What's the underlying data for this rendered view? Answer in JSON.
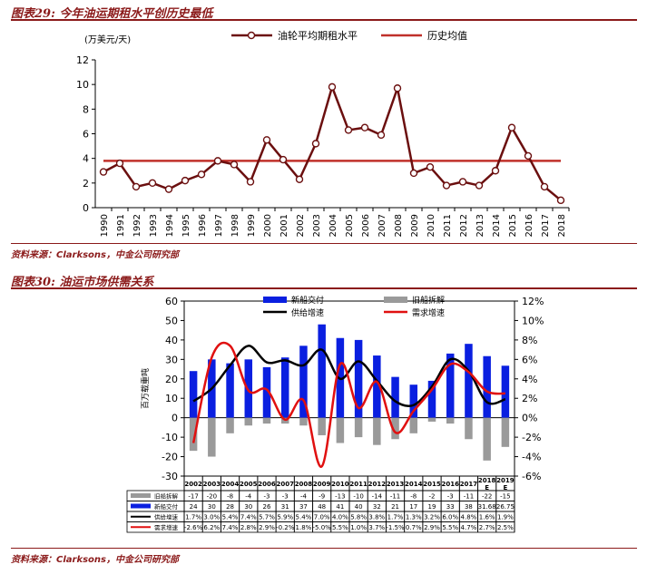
{
  "figures": [
    {
      "title": "图表29: 今年油运期租水平创历史最低",
      "source": "资料来源：Clarksons，中金公司研究部"
    },
    {
      "title": "图表30: 油运市场供需关系",
      "source": "资料来源：Clarksons，中金公司研究部"
    }
  ],
  "chart_data": [
    {
      "type": "line",
      "unit_label": "(万美元/天)",
      "x": [
        "1990",
        "1991",
        "1992",
        "1993",
        "1994",
        "1995",
        "1996",
        "1997",
        "1998",
        "1999",
        "2000",
        "2001",
        "2002",
        "2003",
        "2004",
        "2005",
        "2006",
        "2007",
        "2008",
        "2009",
        "2010",
        "2011",
        "2012",
        "2013",
        "2014",
        "2015",
        "2016",
        "2017",
        "2018"
      ],
      "series": [
        {
          "name": "油轮平均期租水平",
          "color": "#6b0f0f",
          "values": [
            2.9,
            3.6,
            1.7,
            2.0,
            1.5,
            2.2,
            2.7,
            3.8,
            3.5,
            2.1,
            5.5,
            3.9,
            2.3,
            5.2,
            9.8,
            6.3,
            6.5,
            5.9,
            9.7,
            2.8,
            3.3,
            1.8,
            2.1,
            1.8,
            3.0,
            6.5,
            4.2,
            1.7,
            0.6
          ]
        },
        {
          "name": "历史均值",
          "color": "#c0302a",
          "values": [
            3.8,
            3.8,
            3.8,
            3.8,
            3.8,
            3.8,
            3.8,
            3.8,
            3.8,
            3.8,
            3.8,
            3.8,
            3.8,
            3.8,
            3.8,
            3.8,
            3.8,
            3.8,
            3.8,
            3.8,
            3.8,
            3.8,
            3.8,
            3.8,
            3.8,
            3.8,
            3.8,
            3.8,
            3.8
          ]
        }
      ],
      "ylim": [
        0,
        12
      ],
      "yticks": [
        0,
        2,
        4,
        6,
        8,
        10,
        12
      ],
      "legend_position": "top"
    },
    {
      "type": "bar",
      "categories": [
        "2002",
        "2003",
        "2004",
        "2005",
        "2006",
        "2007",
        "2008",
        "2009",
        "2010",
        "2011",
        "2012",
        "2013",
        "2014",
        "2015",
        "2016",
        "2017",
        "2018E",
        "2019E"
      ],
      "ylabel": "百万载重吨",
      "ylim": [
        -30,
        60
      ],
      "yticks": [
        -30,
        -20,
        -10,
        0,
        10,
        20,
        30,
        40,
        50,
        60
      ],
      "y2lim": [
        -6,
        12
      ],
      "y2ticks": [
        "-6%",
        "-4%",
        "-2%",
        "0%",
        "2%",
        "4%",
        "6%",
        "8%",
        "10%",
        "12%"
      ],
      "series": [
        {
          "name": "新船交付",
          "kind": "bar",
          "axis": "left",
          "color": "#0a1fe0",
          "values": [
            24,
            30,
            28,
            30,
            26,
            31,
            37,
            48,
            41,
            40,
            32,
            21,
            17,
            19,
            33,
            38,
            31.68,
            26.75
          ],
          "labels": [
            "24",
            "30",
            "28",
            "30",
            "26",
            "31",
            "37",
            "48",
            "41",
            "40",
            "32",
            "21",
            "17",
            "19",
            "33",
            "38",
            "31.68",
            "26.75"
          ]
        },
        {
          "name": "旧船拆解",
          "kind": "bar",
          "axis": "left",
          "color": "#9a9a9a",
          "values": [
            -17,
            -20,
            -8,
            -4,
            -3,
            -3,
            -4,
            -9,
            -13,
            -10,
            -14,
            -11,
            -8,
            -2,
            -3,
            -11,
            -22,
            -15
          ],
          "labels": [
            "-17",
            "-20",
            "-8",
            "-4",
            "-3",
            "-3",
            "-4",
            "-9",
            "-13",
            "-10",
            "-14",
            "-11",
            "-8",
            "-2",
            "-3",
            "-11",
            "-22",
            "-15"
          ]
        },
        {
          "name": "供给增速",
          "kind": "line",
          "axis": "right",
          "color": "#000000",
          "values": [
            1.7,
            3.0,
            5.4,
            7.4,
            5.7,
            5.9,
            5.4,
            7.0,
            4.0,
            5.8,
            3.8,
            1.7,
            1.3,
            3.2,
            6.0,
            4.8,
            1.6,
            1.9
          ],
          "labels": [
            "1.7%",
            "3.0%",
            "5.4%",
            "7.4%",
            "5.7%",
            "5.9%",
            "5.4%",
            "7.0%",
            "4.0%",
            "5.8%",
            "3.8%",
            "1.7%",
            "1.3%",
            "3.2%",
            "6.0%",
            "4.8%",
            "1.6%",
            "1.9%"
          ]
        },
        {
          "name": "需求增速",
          "kind": "line",
          "axis": "right",
          "color": "#e01010",
          "values": [
            -2.6,
            6.2,
            7.4,
            2.8,
            2.9,
            -0.2,
            1.8,
            -5.0,
            5.5,
            1.0,
            3.7,
            -1.5,
            0.7,
            2.9,
            5.5,
            4.7,
            2.7,
            2.5
          ],
          "labels": [
            "-2.6%",
            "6.2%",
            "7.4%",
            "2.8%",
            "2.9%",
            "-0.2%",
            "1.8%",
            "-5.0%",
            "5.5%",
            "1.0%",
            "3.7%",
            "-1.5%",
            "0.7%",
            "2.9%",
            "5.5%",
            "4.7%",
            "2.7%",
            "2.5%"
          ]
        }
      ]
    }
  ]
}
